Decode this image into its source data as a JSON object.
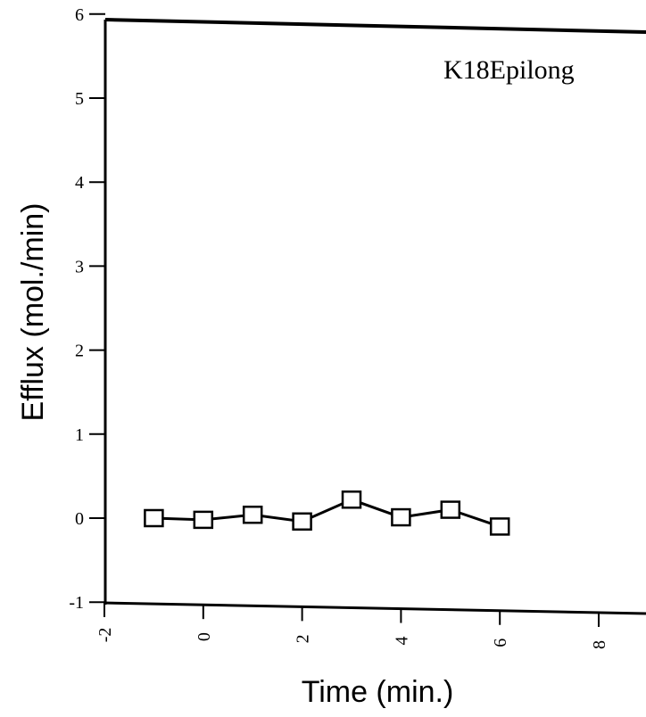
{
  "chart_data": {
    "type": "line",
    "annotation": "K18Epilong",
    "xlabel": "Time (min.)",
    "ylabel": "Efflux (mol./min)",
    "xlim": [
      -2,
      9
    ],
    "ylim": [
      -1,
      6
    ],
    "x_ticks": [
      -2,
      0,
      2,
      4,
      6,
      8
    ],
    "y_ticks": [
      -1,
      0,
      1,
      2,
      3,
      4,
      5,
      6
    ],
    "grid": false,
    "legend": "none",
    "marker": "open-square",
    "series": [
      {
        "x": [
          -1,
          0,
          1,
          2,
          3,
          4,
          5,
          6
        ],
        "y": [
          0.0,
          -0.02,
          0.04,
          -0.04,
          0.22,
          0.01,
          0.1,
          -0.1
        ]
      }
    ]
  }
}
